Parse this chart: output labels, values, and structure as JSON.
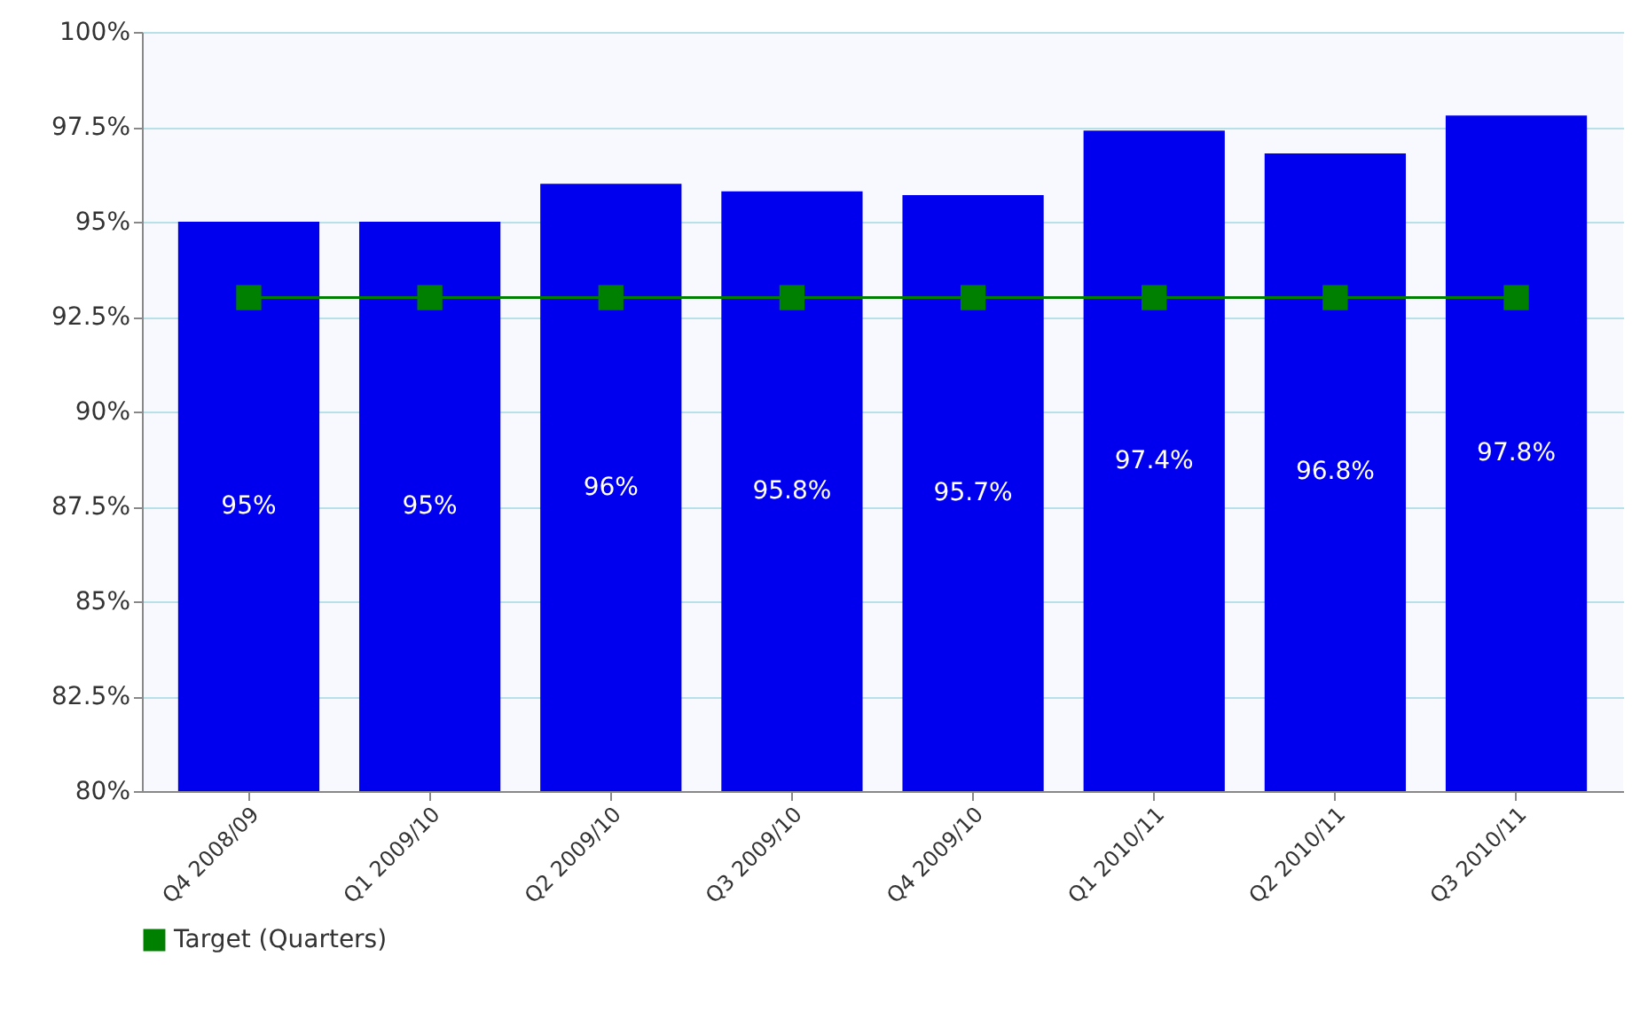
{
  "chart_data": {
    "type": "bar",
    "categories": [
      "Q4 2008/09",
      "Q1 2009/10",
      "Q2 2009/10",
      "Q3 2009/10",
      "Q4 2009/10",
      "Q1 2010/11",
      "Q2 2010/11",
      "Q3 2010/11"
    ],
    "series": [
      {
        "color": "#0000ee",
        "values": [
          95,
          95,
          96,
          95.8,
          95.7,
          97.4,
          96.8,
          97.8
        ],
        "value_labels": [
          "95%",
          "95%",
          "96%",
          "95.8%",
          "95.7%",
          "97.4%",
          "96.8%",
          "97.8%"
        ]
      },
      {
        "type": "line",
        "name": "Target (Quarters)",
        "color": "#008000",
        "values": [
          93,
          93,
          93,
          93,
          93,
          93,
          93,
          93
        ]
      }
    ],
    "ylim": [
      80,
      100
    ],
    "yticks": [
      {
        "value": 80,
        "label": "80%"
      },
      {
        "value": 82.5,
        "label": "82.5%"
      },
      {
        "value": 85,
        "label": "85%"
      },
      {
        "value": 87.5,
        "label": "87.5%"
      },
      {
        "value": 90,
        "label": "90%"
      },
      {
        "value": 92.5,
        "label": "92.5%"
      },
      {
        "value": 95,
        "label": "95%"
      },
      {
        "value": 97.5,
        "label": "97.5%"
      },
      {
        "value": 100,
        "label": "100%"
      }
    ],
    "grid": "y",
    "legend": "bottom",
    "marker": "square",
    "line_style": "solid"
  }
}
